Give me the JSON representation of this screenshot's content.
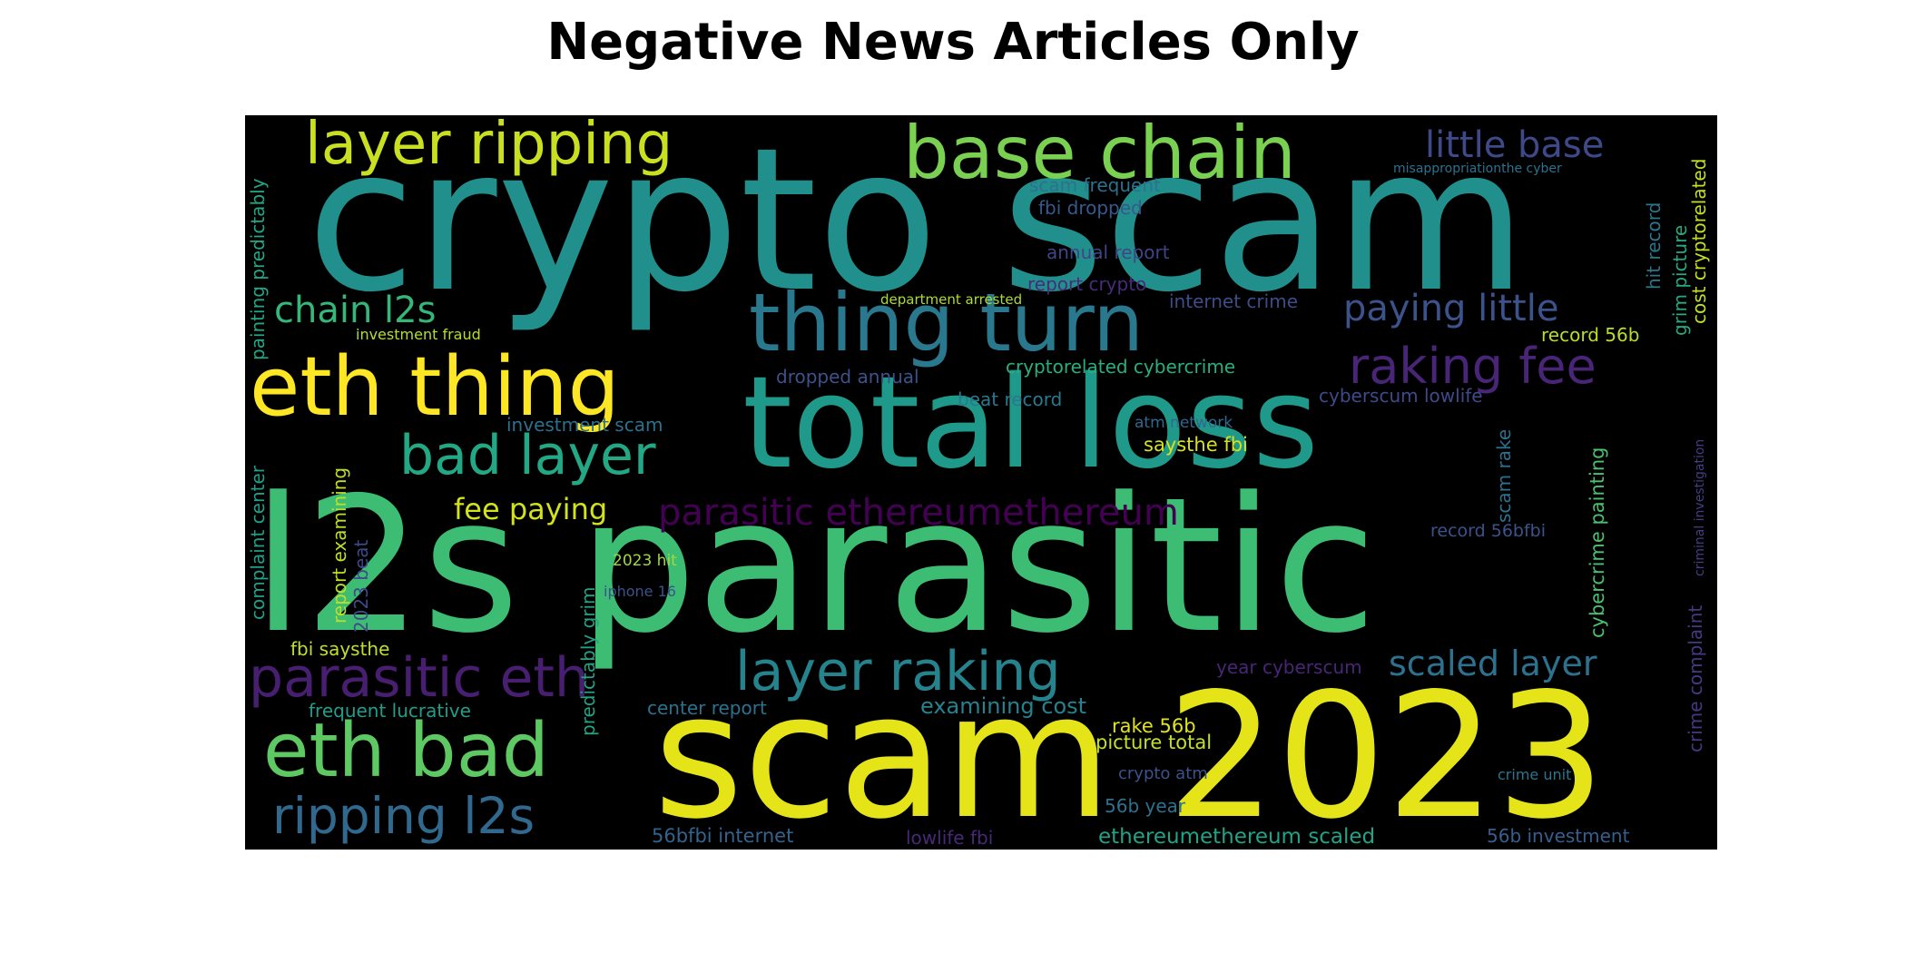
{
  "title": "Negative News Articles Only",
  "words": [
    {
      "text": "crypto scam",
      "color": "#21908d"
    },
    {
      "text": "l2s parasitic",
      "color": "#3dbc74"
    },
    {
      "text": "total loss",
      "color": "#1f9a8a"
    },
    {
      "text": "scam 2023",
      "color": "#e5e419"
    },
    {
      "text": "thing turn",
      "color": "#2a788e"
    },
    {
      "text": "base chain",
      "color": "#7ad151"
    },
    {
      "text": "eth thing",
      "color": "#fde725"
    },
    {
      "text": "layer ripping",
      "color": "#c8e020"
    },
    {
      "text": "eth bad",
      "color": "#5ec962"
    },
    {
      "text": "layer raking",
      "color": "#25838e"
    },
    {
      "text": "parasitic eth",
      "color": "#481f70"
    },
    {
      "text": "raking fee",
      "color": "#482576"
    },
    {
      "text": "bad layer",
      "color": "#22a884"
    },
    {
      "text": "ripping l2s",
      "color": "#31688e"
    },
    {
      "text": "parasitic ethereumethereum",
      "color": "#440154"
    },
    {
      "text": "little base",
      "color": "#3e4989"
    },
    {
      "text": "paying little",
      "color": "#3b528b"
    },
    {
      "text": "scaled layer",
      "color": "#2c718e"
    },
    {
      "text": "chain l2s",
      "color": "#35b779"
    },
    {
      "text": "fee paying",
      "color": "#d2e21b"
    },
    {
      "text": "cryptorelated cybercrime",
      "color": "#29af7f"
    },
    {
      "text": "scam frequent",
      "color": "#2c728e"
    },
    {
      "text": "fbi dropped",
      "color": "#38588c"
    },
    {
      "text": "annual report",
      "color": "#414487"
    },
    {
      "text": "report crypto",
      "color": "#472c7a"
    },
    {
      "text": "internet crime",
      "color": "#3e4c8a"
    },
    {
      "text": "department arrested",
      "color": "#addc30"
    },
    {
      "text": "investment fraud",
      "color": "#b5de2b"
    },
    {
      "text": "dropped annual",
      "color": "#3b528b"
    },
    {
      "text": "beat record",
      "color": "#2a788e"
    },
    {
      "text": "cyberscum lowlife",
      "color": "#3e4a89"
    },
    {
      "text": "investment scam",
      "color": "#2d708e"
    },
    {
      "text": "atm network",
      "color": "#31688e"
    },
    {
      "text": "saysthe fbi",
      "color": "#d8e219"
    },
    {
      "text": "record 56b",
      "color": "#b8de29"
    },
    {
      "text": "record 56bfbi",
      "color": "#3b528b"
    },
    {
      "text": "2023 hit",
      "color": "#9fda3a"
    },
    {
      "text": "iphone 16",
      "color": "#3b528b"
    },
    {
      "text": "fbi saysthe",
      "color": "#c0df25"
    },
    {
      "text": "year cyberscum",
      "color": "#482677"
    },
    {
      "text": "center report",
      "color": "#2c728e"
    },
    {
      "text": "examining cost",
      "color": "#26828e"
    },
    {
      "text": "rake 56b",
      "color": "#e2e418"
    },
    {
      "text": "picture total",
      "color": "#c5e021"
    },
    {
      "text": "crypto atm",
      "color": "#3b528b"
    },
    {
      "text": "crime unit",
      "color": "#2a768e"
    },
    {
      "text": "56b year",
      "color": "#2c728e"
    },
    {
      "text": "frequent lucrative",
      "color": "#1f9e89"
    },
    {
      "text": "56bfbi internet",
      "color": "#33638d"
    },
    {
      "text": "lowlife fbi",
      "color": "#482878"
    },
    {
      "text": "ethereumethereum scaled",
      "color": "#20a386"
    },
    {
      "text": "56b investment",
      "color": "#355f8d"
    },
    {
      "text": "misappropriationthe cyber",
      "color": "#2c718e"
    },
    {
      "text": "painting predictably",
      "color": "#22a785"
    },
    {
      "text": "complaint center",
      "color": "#1fa088"
    },
    {
      "text": "report examining",
      "color": "#bddf26"
    },
    {
      "text": "2023 beat",
      "color": "#3e4989"
    },
    {
      "text": "predictably grim",
      "color": "#20a486"
    },
    {
      "text": "scam rake",
      "color": "#2c728e"
    },
    {
      "text": "cybercrime painting",
      "color": "#4ac16d"
    },
    {
      "text": "hit record",
      "color": "#2a768e"
    },
    {
      "text": "grim picture",
      "color": "#25ab82"
    },
    {
      "text": "cost cryptorelated",
      "color": "#c2df23"
    },
    {
      "text": "crime complaint",
      "color": "#443983"
    },
    {
      "text": "criminal investigation",
      "color": "#433e85"
    }
  ]
}
